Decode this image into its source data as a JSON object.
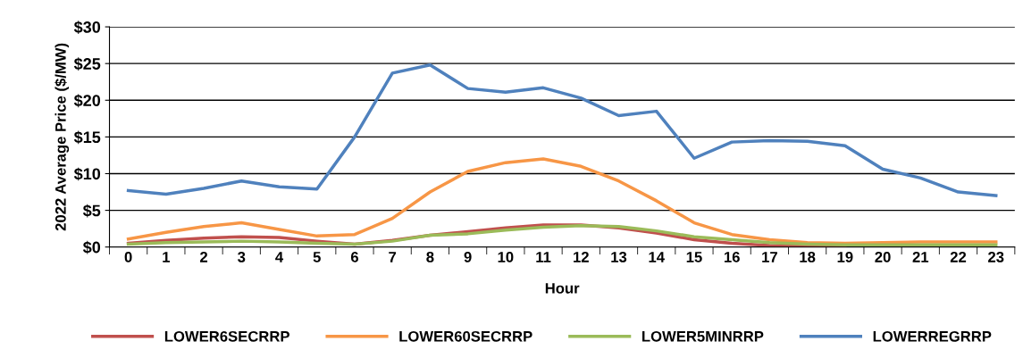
{
  "chart_data": {
    "type": "line",
    "xlabel": "Hour",
    "ylabel": "2022 Average Price ($/MW)",
    "categories": [
      "0",
      "1",
      "2",
      "3",
      "4",
      "5",
      "6",
      "7",
      "8",
      "9",
      "10",
      "11",
      "12",
      "13",
      "14",
      "15",
      "16",
      "17",
      "18",
      "19",
      "20",
      "21",
      "22",
      "23"
    ],
    "series": [
      {
        "name": "LOWER6SECRRP",
        "color": "#c0504d",
        "values": [
          0.5,
          0.9,
          1.2,
          1.4,
          1.3,
          0.8,
          0.4,
          0.9,
          1.6,
          2.1,
          2.6,
          3.0,
          3.0,
          2.6,
          1.9,
          1.0,
          0.5,
          0.2,
          0.1,
          0.1,
          null,
          null,
          null,
          null
        ]
      },
      {
        "name": "LOWER60SECRRP",
        "color": "#f79646",
        "values": [
          1.1,
          2.0,
          2.8,
          3.3,
          2.4,
          1.5,
          1.7,
          3.9,
          7.5,
          10.3,
          11.5,
          12.0,
          11.0,
          9.0,
          6.3,
          3.3,
          1.7,
          1.0,
          0.6,
          0.5,
          0.6,
          0.7,
          0.7,
          0.7
        ]
      },
      {
        "name": "LOWER5MINRRP",
        "color": "#9bbb59",
        "values": [
          0.4,
          0.6,
          0.7,
          0.8,
          0.7,
          0.5,
          0.4,
          0.8,
          1.6,
          1.8,
          2.3,
          2.7,
          2.9,
          2.8,
          2.2,
          1.4,
          1.0,
          0.6,
          0.4,
          0.3,
          0.3,
          0.3,
          0.3,
          0.3
        ]
      },
      {
        "name": "LOWERREGRRP",
        "color": "#4f81bd",
        "values": [
          7.7,
          7.2,
          8.0,
          9.0,
          8.2,
          7.9,
          15.0,
          23.7,
          24.8,
          21.6,
          21.1,
          21.7,
          20.3,
          17.9,
          18.5,
          12.1,
          14.3,
          14.5,
          14.4,
          13.8,
          10.6,
          9.4,
          7.5,
          7.0
        ]
      }
    ],
    "ylim": [
      0,
      30
    ],
    "yticks": [
      {
        "value": 0,
        "label": "$0"
      },
      {
        "value": 5,
        "label": "$5"
      },
      {
        "value": 10,
        "label": "$10"
      },
      {
        "value": 15,
        "label": "$15"
      },
      {
        "value": 20,
        "label": "$20"
      },
      {
        "value": 25,
        "label": "$25"
      },
      {
        "value": 30,
        "label": "$30"
      }
    ],
    "grid": "y",
    "legend": "bottom",
    "marker": "none",
    "line_style": "solid"
  }
}
